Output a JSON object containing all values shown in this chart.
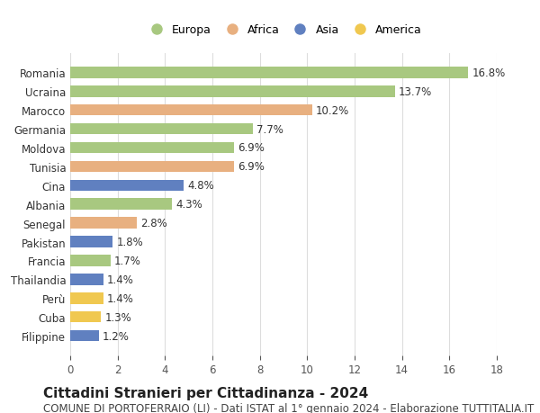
{
  "categories": [
    "Filippine",
    "Cuba",
    "Perù",
    "Thailandia",
    "Francia",
    "Pakistan",
    "Senegal",
    "Albania",
    "Cina",
    "Tunisia",
    "Moldova",
    "Germania",
    "Marocco",
    "Ucraina",
    "Romania"
  ],
  "values": [
    1.2,
    1.3,
    1.4,
    1.4,
    1.7,
    1.8,
    2.8,
    4.3,
    4.8,
    6.9,
    6.9,
    7.7,
    10.2,
    13.7,
    16.8
  ],
  "continents": [
    "Asia",
    "America",
    "America",
    "Asia",
    "Europa",
    "Asia",
    "Africa",
    "Europa",
    "Asia",
    "Africa",
    "Europa",
    "Europa",
    "Africa",
    "Europa",
    "Europa"
  ],
  "continent_colors": {
    "Europa": "#a8c880",
    "Africa": "#e8b080",
    "Asia": "#6080c0",
    "America": "#f0c850"
  },
  "legend_order": [
    "Europa",
    "Africa",
    "Asia",
    "America"
  ],
  "title": "Cittadini Stranieri per Cittadinanza - 2024",
  "subtitle": "COMUNE DI PORTOFERRAIO (LI) - Dati ISTAT al 1° gennaio 2024 - Elaborazione TUTTITALIA.IT",
  "xlim": [
    0,
    18
  ],
  "xticks": [
    0,
    2,
    4,
    6,
    8,
    10,
    12,
    14,
    16,
    18
  ],
  "bg_color": "#ffffff",
  "grid_color": "#dddddd",
  "title_fontsize": 11,
  "subtitle_fontsize": 8.5,
  "label_fontsize": 8.5,
  "tick_fontsize": 8.5
}
